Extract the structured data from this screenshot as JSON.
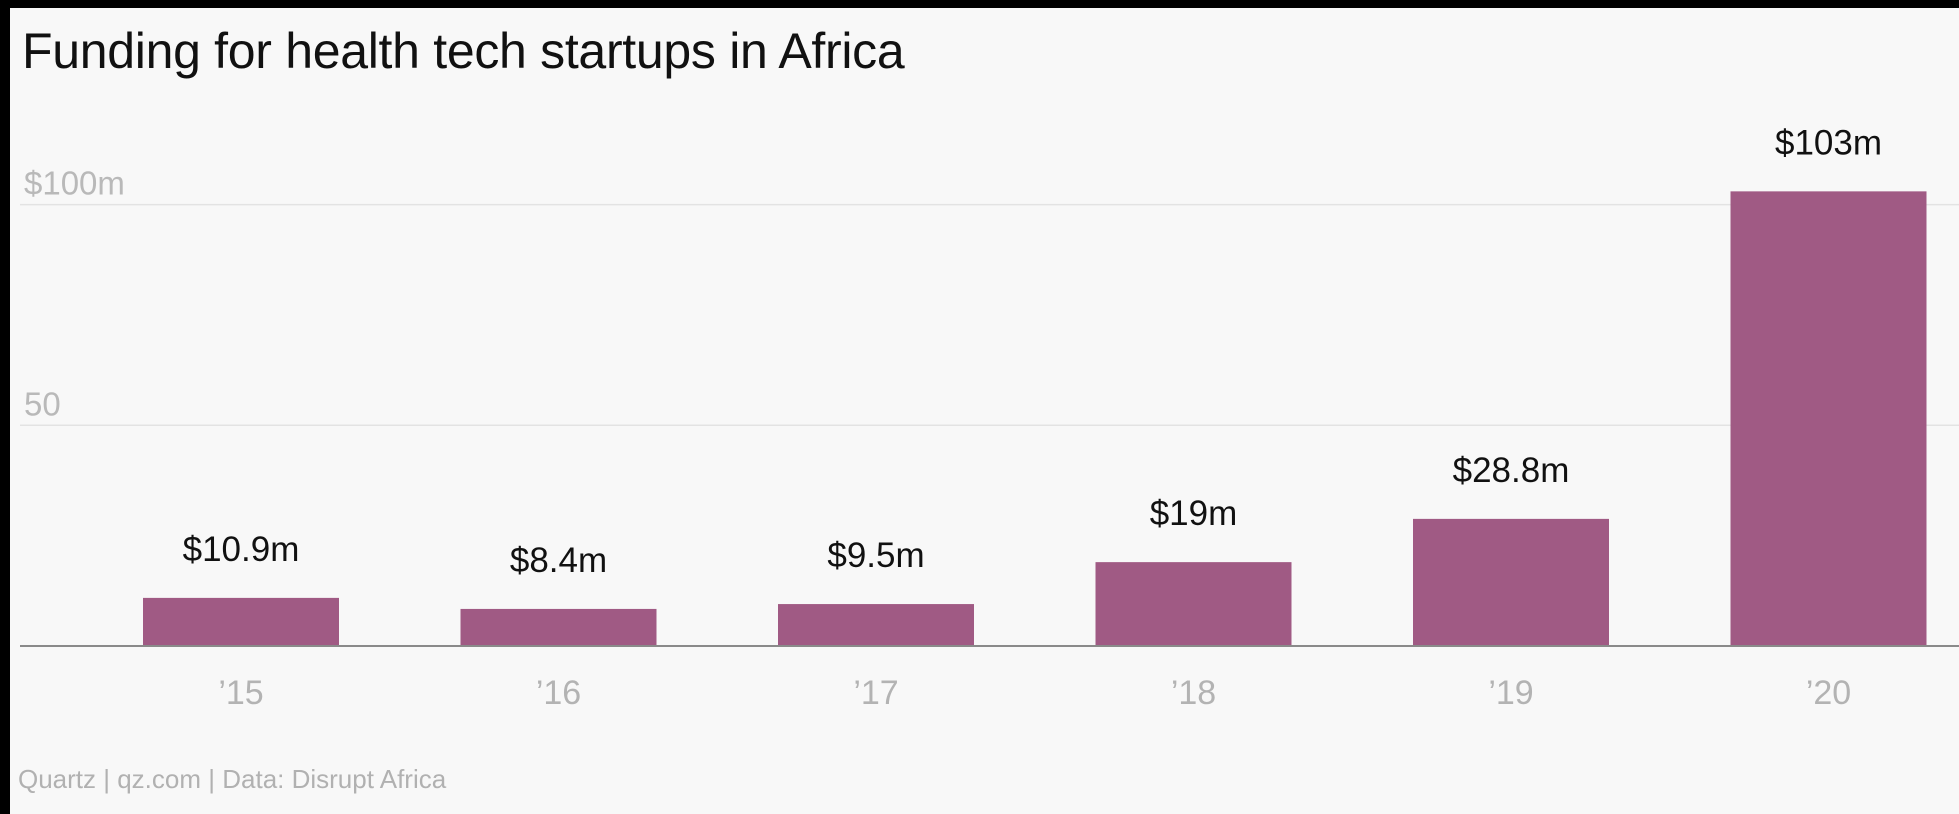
{
  "title": "Funding for health tech startups in Africa",
  "source": "Quartz | qz.com | Data: Disrupt Africa",
  "colors": {
    "bar": "#a05a84",
    "gridline": "#e3e3e3",
    "axis": "#8a8a8a"
  },
  "chart_data": {
    "type": "bar",
    "title": "Funding for health tech startups in Africa",
    "xlabel": "",
    "ylabel": "",
    "categories": [
      "’15",
      "’16",
      "’17",
      "’18",
      "’19",
      "’20"
    ],
    "values": [
      10.9,
      8.4,
      9.5,
      19,
      28.8,
      103
    ],
    "value_labels": [
      "$10.9m",
      "$8.4m",
      "$9.5m",
      "$19m",
      "$28.8m",
      "$103m"
    ],
    "yticks": [
      {
        "value": 50,
        "label": "50"
      },
      {
        "value": 100,
        "label": "$100m"
      }
    ],
    "ylim": [
      0,
      103
    ],
    "unit": "$m",
    "grid": true,
    "legend": "none"
  }
}
